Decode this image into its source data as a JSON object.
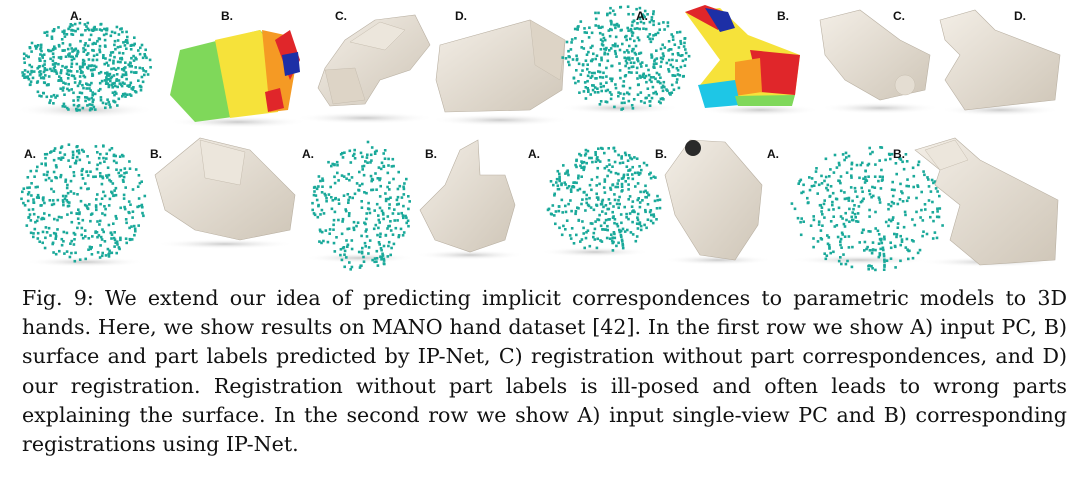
{
  "figure": {
    "row1": {
      "left": {
        "labels": [
          "A.",
          "B.",
          "C.",
          "D."
        ]
      },
      "right": {
        "labels": [
          "A.",
          "B.",
          "C.",
          "D."
        ]
      }
    },
    "row2": {
      "labels": [
        "A.",
        "B.",
        "A.",
        "B.",
        "A.",
        "B.",
        "A.",
        "B."
      ]
    },
    "colors": {
      "point_cloud": "#1aa99a",
      "mesh": "#e8e1d6",
      "mesh_shadow": "#c9c0b2",
      "part_green": "#7fd85a",
      "part_yellow": "#f6e23a",
      "part_orange": "#f59a24",
      "part_red": "#e0262a",
      "part_blue": "#1d2fa6",
      "part_cyan": "#1ec6e6"
    }
  },
  "caption": {
    "label": "Fig. 9:",
    "text": "We extend our idea of predicting implicit correspondences to parametric models to 3D hands. Here, we show results on MANO hand dataset [42]. In the first row we show A) input PC, B) surface and part labels predicted by IP-Net, C) registration without part correspondences, and D) our registration. Registration without part labels is ill-posed and often leads to wrong parts explaining the surface. In the second row we show A) input single-view PC and B) corresponding registrations using IP-Net."
  }
}
